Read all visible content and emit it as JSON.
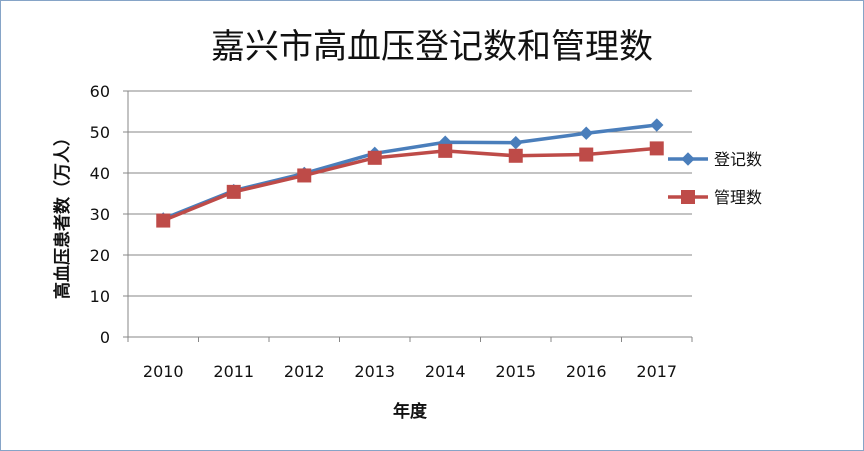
{
  "chart_data": {
    "type": "line",
    "title": "嘉兴市高血压登记数和管理数",
    "xlabel": "年度",
    "ylabel": "高血压患者数（万人）",
    "categories": [
      "2010",
      "2011",
      "2012",
      "2013",
      "2014",
      "2015",
      "2016",
      "2017"
    ],
    "ylim": [
      0,
      60
    ],
    "yticks": [
      0,
      10,
      20,
      30,
      40,
      50,
      60
    ],
    "grid": true,
    "legend_position": "right",
    "series": [
      {
        "name": "登记数",
        "color": "#4a7ebb",
        "marker": "diamond",
        "values": [
          28.8,
          35.7,
          39.9,
          44.8,
          47.5,
          47.4,
          49.7,
          51.7
        ]
      },
      {
        "name": "管理数",
        "color": "#be4b48",
        "marker": "square",
        "values": [
          28.4,
          35.4,
          39.4,
          43.7,
          45.4,
          44.2,
          44.5,
          46.0
        ]
      }
    ]
  }
}
